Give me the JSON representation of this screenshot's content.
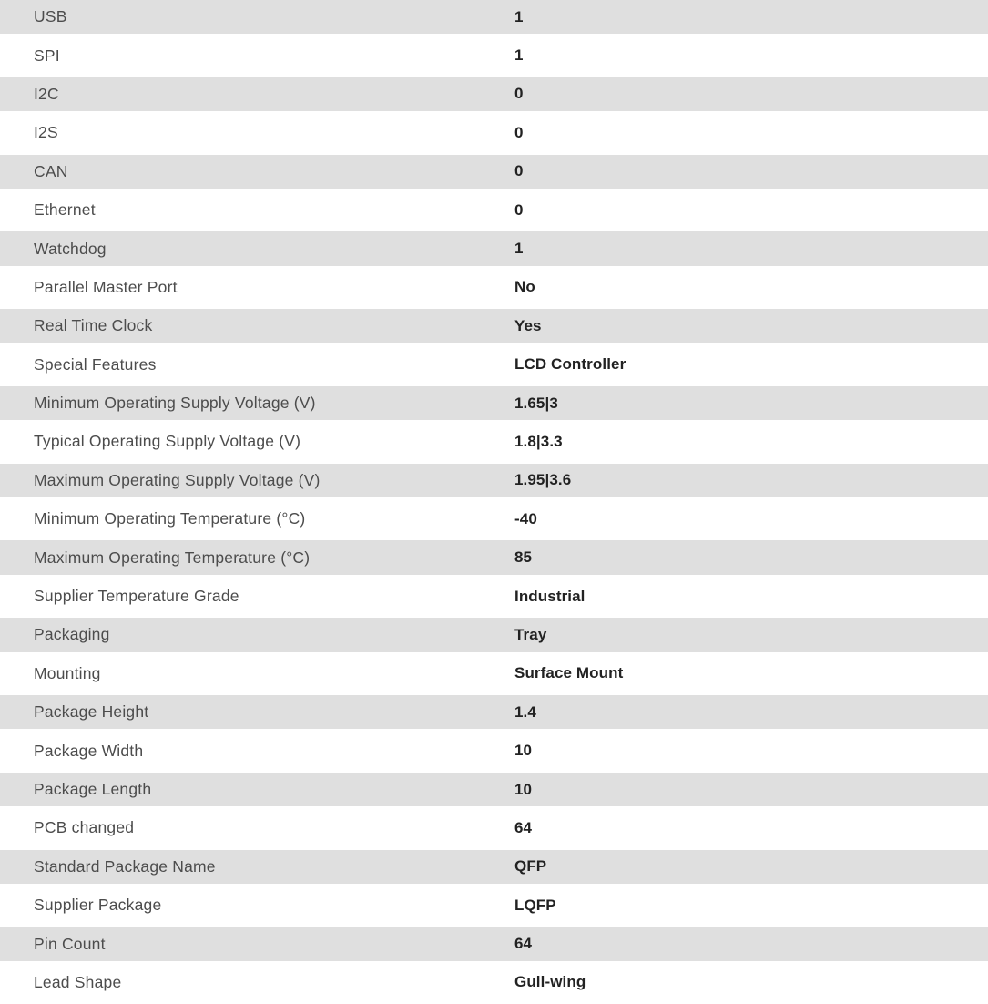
{
  "colors": {
    "row_alt_background": "#dfdfdf",
    "row_background": "#ffffff",
    "label_text": "#4c4c4c",
    "value_text": "#222222"
  },
  "spec_table": {
    "rows": [
      {
        "label": "USB",
        "value": "1"
      },
      {
        "label": "SPI",
        "value": "1"
      },
      {
        "label": "I2C",
        "value": "0"
      },
      {
        "label": "I2S",
        "value": "0"
      },
      {
        "label": "CAN",
        "value": "0"
      },
      {
        "label": "Ethernet",
        "value": "0"
      },
      {
        "label": "Watchdog",
        "value": "1"
      },
      {
        "label": "Parallel Master Port",
        "value": "No"
      },
      {
        "label": "Real Time Clock",
        "value": "Yes"
      },
      {
        "label": "Special Features",
        "value": "LCD Controller"
      },
      {
        "label": "Minimum Operating Supply Voltage (V)",
        "value": "1.65|3"
      },
      {
        "label": "Typical Operating Supply Voltage (V)",
        "value": "1.8|3.3"
      },
      {
        "label": "Maximum Operating Supply Voltage (V)",
        "value": "1.95|3.6"
      },
      {
        "label": "Minimum Operating Temperature (°C)",
        "value": "-40"
      },
      {
        "label": "Maximum Operating Temperature (°C)",
        "value": "85"
      },
      {
        "label": "Supplier Temperature Grade",
        "value": "Industrial"
      },
      {
        "label": "Packaging",
        "value": "Tray"
      },
      {
        "label": "Mounting",
        "value": "Surface Mount"
      },
      {
        "label": "Package Height",
        "value": "1.4"
      },
      {
        "label": "Package Width",
        "value": "10"
      },
      {
        "label": "Package Length",
        "value": "10"
      },
      {
        "label": "PCB changed",
        "value": "64"
      },
      {
        "label": "Standard Package Name",
        "value": "QFP"
      },
      {
        "label": "Supplier Package",
        "value": "LQFP"
      },
      {
        "label": "Pin Count",
        "value": "64"
      },
      {
        "label": "Lead Shape",
        "value": "Gull-wing"
      }
    ]
  }
}
